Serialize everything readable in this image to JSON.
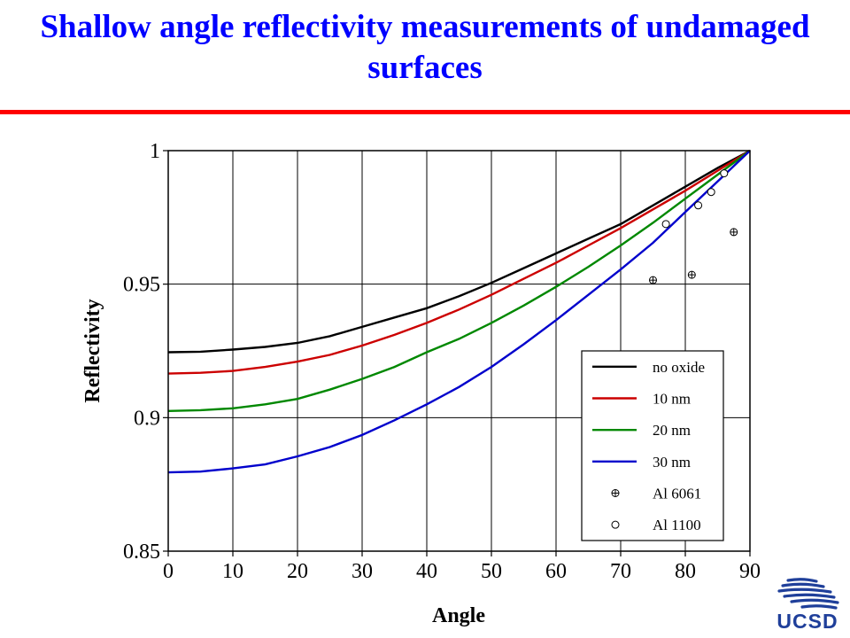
{
  "slide": {
    "title": "Shallow angle reflectivity measurements of undamaged surfaces",
    "title_color": "#0000ff",
    "rule_color": "#ff0000"
  },
  "logo": {
    "text": "UCSD",
    "icon": "ucsd-wave-icon",
    "color": "#1f3f9a"
  },
  "chart_data": {
    "type": "line",
    "title": "",
    "xlabel": "Angle",
    "ylabel": "Reflectivity",
    "xlim": [
      0,
      90
    ],
    "ylim": [
      0.85,
      1
    ],
    "xticks": [
      0,
      10,
      20,
      30,
      40,
      50,
      60,
      70,
      80,
      90
    ],
    "yticks": [
      0.85,
      0.9,
      0.95,
      1
    ],
    "ytick_labels": [
      "0.85",
      "0.9",
      "0.95",
      "1"
    ],
    "grid": true,
    "legend_position": "lower-right",
    "x": [
      0,
      5,
      10,
      15,
      20,
      25,
      30,
      35,
      40,
      45,
      50,
      55,
      60,
      65,
      70,
      75,
      80,
      85,
      90
    ],
    "series": [
      {
        "name": "no oxide",
        "color": "#000000",
        "values": [
          0.9245,
          0.9247,
          0.9255,
          0.9265,
          0.928,
          0.9305,
          0.934,
          0.9375,
          0.941,
          0.9455,
          0.9505,
          0.956,
          0.9615,
          0.967,
          0.9725,
          0.9795,
          0.9865,
          0.9935,
          1.0
        ]
      },
      {
        "name": "10 nm",
        "color": "#cc0000",
        "values": [
          0.9165,
          0.9168,
          0.9175,
          0.919,
          0.921,
          0.9235,
          0.927,
          0.931,
          0.9355,
          0.9405,
          0.946,
          0.952,
          0.958,
          0.9645,
          0.971,
          0.978,
          0.985,
          0.9925,
          1.0
        ]
      },
      {
        "name": "20 nm",
        "color": "#008800",
        "values": [
          0.9025,
          0.9028,
          0.9035,
          0.905,
          0.907,
          0.9105,
          0.9145,
          0.919,
          0.9245,
          0.9295,
          0.9355,
          0.942,
          0.949,
          0.9565,
          0.9645,
          0.973,
          0.982,
          0.991,
          1.0
        ]
      },
      {
        "name": "30 nm",
        "color": "#0000cc",
        "values": [
          0.8795,
          0.8798,
          0.881,
          0.8825,
          0.8855,
          0.889,
          0.8935,
          0.899,
          0.905,
          0.9115,
          0.919,
          0.9275,
          0.9365,
          0.946,
          0.9555,
          0.9655,
          0.977,
          0.9885,
          1.0
        ]
      }
    ],
    "markers": [
      {
        "name": "Al 6061",
        "symbol": "circle-plus",
        "points": [
          [
            75,
            0.9515
          ],
          [
            81,
            0.9535
          ],
          [
            87.5,
            0.9695
          ]
        ]
      },
      {
        "name": "Al 1100",
        "symbol": "circle",
        "points": [
          [
            77,
            0.9725
          ],
          [
            82,
            0.9795
          ],
          [
            84,
            0.9845
          ],
          [
            86,
            0.9915
          ]
        ]
      }
    ]
  }
}
